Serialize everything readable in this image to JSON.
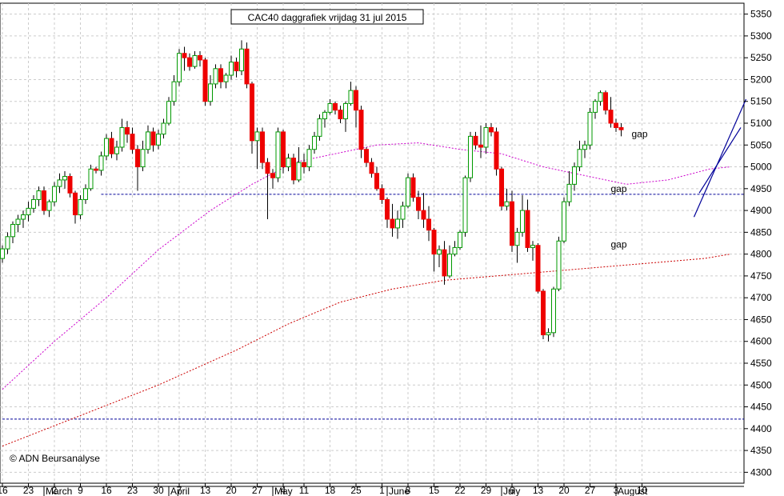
{
  "chart_data": {
    "type": "candlestick",
    "title": "CAC40 daggrafiek vrijdag 31 jul 2015",
    "watermark": "© ADN Beursanalyse",
    "ylim": [
      4275,
      5375
    ],
    "y_ticks": [
      4300,
      4350,
      4400,
      4450,
      4500,
      4550,
      4600,
      4650,
      4700,
      4750,
      4800,
      4850,
      4900,
      4950,
      5000,
      5050,
      5100,
      5150,
      5200,
      5250,
      5300,
      5350
    ],
    "day_labels": [
      {
        "label": "16",
        "i": 0
      },
      {
        "label": "23",
        "i": 5
      },
      {
        "label": "2",
        "i": 10
      },
      {
        "label": "9",
        "i": 15
      },
      {
        "label": "16",
        "i": 20
      },
      {
        "label": "23",
        "i": 25
      },
      {
        "label": "30",
        "i": 30
      },
      {
        "label": "7",
        "i": 34
      },
      {
        "label": "13",
        "i": 39
      },
      {
        "label": "20",
        "i": 44
      },
      {
        "label": "27",
        "i": 49
      },
      {
        "label": "4",
        "i": 54
      },
      {
        "label": "11",
        "i": 58
      },
      {
        "label": "18",
        "i": 63
      },
      {
        "label": "25",
        "i": 68
      },
      {
        "label": "1",
        "i": 73
      },
      {
        "label": "8",
        "i": 78
      },
      {
        "label": "15",
        "i": 83
      },
      {
        "label": "22",
        "i": 88
      },
      {
        "label": "29",
        "i": 93
      },
      {
        "label": "6",
        "i": 98
      },
      {
        "label": "13",
        "i": 103
      },
      {
        "label": "20",
        "i": 108
      },
      {
        "label": "27",
        "i": 113
      },
      {
        "label": "3",
        "i": 118
      },
      {
        "label": "10",
        "i": 123
      }
    ],
    "month_labels": [
      {
        "label": "March",
        "i": 8
      },
      {
        "label": "April",
        "i": 32
      },
      {
        "label": "May",
        "i": 52
      },
      {
        "label": "June",
        "i": 74
      },
      {
        "label": "July",
        "i": 96
      },
      {
        "label": "August",
        "i": 118
      }
    ],
    "candles": [
      [
        4790,
        4820,
        4780,
        4812
      ],
      [
        4812,
        4850,
        4800,
        4840
      ],
      [
        4840,
        4875,
        4825,
        4868
      ],
      [
        4868,
        4890,
        4850,
        4880
      ],
      [
        4880,
        4900,
        4860,
        4890
      ],
      [
        4890,
        4920,
        4875,
        4905
      ],
      [
        4905,
        4935,
        4895,
        4925
      ],
      [
        4925,
        4955,
        4910,
        4945
      ],
      [
        4945,
        4955,
        4890,
        4900
      ],
      [
        4900,
        4925,
        4885,
        4920
      ],
      [
        4920,
        4965,
        4910,
        4955
      ],
      [
        4955,
        4985,
        4940,
        4970
      ],
      [
        4970,
        4990,
        4950,
        4978
      ],
      [
        4978,
        4985,
        4930,
        4940
      ],
      [
        4940,
        4945,
        4870,
        4890
      ],
      [
        4890,
        4935,
        4880,
        4925
      ],
      [
        4925,
        4960,
        4915,
        4950
      ],
      [
        4950,
        5005,
        4945,
        4995
      ],
      [
        4995,
        5000,
        4985,
        4992
      ],
      [
        4992,
        5035,
        4980,
        5025
      ],
      [
        5025,
        5075,
        5015,
        5065
      ],
      [
        5065,
        5080,
        5020,
        5030
      ],
      [
        5030,
        5060,
        5015,
        5045
      ],
      [
        5045,
        5110,
        5035,
        5090
      ],
      [
        5090,
        5105,
        5055,
        5075
      ],
      [
        5075,
        5090,
        5030,
        5040
      ],
      [
        5040,
        5050,
        4945,
        5000
      ],
      [
        5000,
        5060,
        4990,
        5040
      ],
      [
        5040,
        5095,
        5030,
        5080
      ],
      [
        5080,
        5090,
        5035,
        5050
      ],
      [
        5050,
        5085,
        5040,
        5075
      ],
      [
        5075,
        5110,
        5065,
        5100
      ],
      [
        5100,
        5160,
        5095,
        5150
      ],
      [
        5150,
        5210,
        5140,
        5195
      ],
      [
        5195,
        5270,
        5185,
        5260
      ],
      [
        5260,
        5275,
        5220,
        5250
      ],
      [
        5250,
        5260,
        5220,
        5230
      ],
      [
        5230,
        5265,
        5225,
        5255
      ],
      [
        5255,
        5265,
        5230,
        5245
      ],
      [
        5245,
        5250,
        5140,
        5150
      ],
      [
        5150,
        5210,
        5140,
        5190
      ],
      [
        5190,
        5235,
        5180,
        5225
      ],
      [
        5225,
        5235,
        5180,
        5195
      ],
      [
        5195,
        5215,
        5180,
        5210
      ],
      [
        5210,
        5255,
        5200,
        5240
      ],
      [
        5240,
        5250,
        5205,
        5220
      ],
      [
        5220,
        5290,
        5210,
        5270
      ],
      [
        5270,
        5285,
        5180,
        5190
      ],
      [
        5190,
        5195,
        5030,
        5060
      ],
      [
        5060,
        5090,
        4995,
        5080
      ],
      [
        5080,
        5090,
        4995,
        5010
      ],
      [
        5010,
        5020,
        4880,
        4985
      ],
      [
        4985,
        4995,
        4950,
        4975
      ],
      [
        4975,
        5090,
        4965,
        5080
      ],
      [
        5080,
        5085,
        4985,
        5000
      ],
      [
        5000,
        5030,
        4990,
        5020
      ],
      [
        5020,
        5030,
        4960,
        4970
      ],
      [
        4970,
        5045,
        4965,
        5010
      ],
      [
        5010,
        5030,
        4985,
        5000
      ],
      [
        5000,
        5050,
        4990,
        5040
      ],
      [
        5040,
        5080,
        5030,
        5070
      ],
      [
        5070,
        5120,
        5060,
        5110
      ],
      [
        5110,
        5130,
        5090,
        5125
      ],
      [
        5125,
        5155,
        5120,
        5145
      ],
      [
        5145,
        5150,
        5120,
        5130
      ],
      [
        5130,
        5140,
        5100,
        5110
      ],
      [
        5110,
        5150,
        5080,
        5145
      ],
      [
        5145,
        5195,
        5140,
        5175
      ],
      [
        5175,
        5185,
        5090,
        5130
      ],
      [
        5130,
        5140,
        5020,
        5040
      ],
      [
        5040,
        5045,
        5000,
        5010
      ],
      [
        5010,
        5020,
        4975,
        4985
      ],
      [
        4985,
        5000,
        4945,
        4950
      ],
      [
        4950,
        4960,
        4915,
        4925
      ],
      [
        4925,
        4930,
        4860,
        4880
      ],
      [
        4880,
        4915,
        4840,
        4860
      ],
      [
        4860,
        4900,
        4835,
        4880
      ],
      [
        4880,
        4920,
        4860,
        4910
      ],
      [
        4910,
        4985,
        4905,
        4975
      ],
      [
        4975,
        4985,
        4920,
        4930
      ],
      [
        4930,
        4945,
        4880,
        4900
      ],
      [
        4900,
        4940,
        4860,
        4880
      ],
      [
        4880,
        4910,
        4830,
        4855
      ],
      [
        4855,
        4860,
        4760,
        4800
      ],
      [
        4800,
        4820,
        4770,
        4810
      ],
      [
        4810,
        4830,
        4730,
        4750
      ],
      [
        4750,
        4820,
        4745,
        4800
      ],
      [
        4800,
        4830,
        4795,
        4815
      ],
      [
        4815,
        4855,
        4810,
        4850
      ],
      [
        4850,
        4980,
        4840,
        4975
      ],
      [
        4975,
        5080,
        4965,
        5070
      ],
      [
        5070,
        5080,
        5040,
        5050
      ],
      [
        5050,
        5095,
        5020,
        5045
      ],
      [
        5045,
        5100,
        5030,
        5090
      ],
      [
        5090,
        5100,
        5070,
        5080
      ],
      [
        5080,
        5090,
        4980,
        4995
      ],
      [
        4995,
        5000,
        4900,
        4910
      ],
      [
        4910,
        4950,
        4900,
        4920
      ],
      [
        4920,
        4945,
        4805,
        4820
      ],
      [
        4820,
        4860,
        4780,
        4850
      ],
      [
        4850,
        4935,
        4840,
        4900
      ],
      [
        4900,
        4925,
        4805,
        4815
      ],
      [
        4815,
        4830,
        4785,
        4820
      ],
      [
        4820,
        4825,
        4710,
        4715
      ],
      [
        4715,
        4720,
        4605,
        4615
      ],
      [
        4615,
        4630,
        4600,
        4620
      ],
      [
        4620,
        4725,
        4610,
        4720
      ],
      [
        4720,
        4840,
        4715,
        4830
      ],
      [
        4830,
        4930,
        4825,
        4920
      ],
      [
        4920,
        4990,
        4910,
        4960
      ],
      [
        4960,
        5010,
        4945,
        5000
      ],
      [
        5000,
        5060,
        4990,
        5040
      ],
      [
        5040,
        5060,
        5020,
        5050
      ],
      [
        5050,
        5135,
        5040,
        5125
      ],
      [
        5125,
        5155,
        5110,
        5150
      ],
      [
        5150,
        5175,
        5140,
        5170
      ],
      [
        5170,
        5175,
        5120,
        5130
      ],
      [
        5130,
        5160,
        5090,
        5100
      ],
      [
        5100,
        5110,
        5080,
        5090
      ],
      [
        5090,
        5100,
        5070,
        5085
      ]
    ],
    "moving_averages": [
      {
        "color": "#cc00cc",
        "points": [
          [
            0,
            4490
          ],
          [
            10,
            4600
          ],
          [
            20,
            4700
          ],
          [
            30,
            4810
          ],
          [
            40,
            4900
          ],
          [
            48,
            4960
          ],
          [
            56,
            5010
          ],
          [
            64,
            5030
          ],
          [
            72,
            5050
          ],
          [
            80,
            5055
          ],
          [
            88,
            5040
          ],
          [
            96,
            5030
          ],
          [
            104,
            5000
          ],
          [
            112,
            4980
          ],
          [
            120,
            4960
          ],
          [
            128,
            4970
          ],
          [
            136,
            4995
          ],
          [
            140,
            5000
          ]
        ]
      },
      {
        "color": "#cc0000",
        "points": [
          [
            0,
            4360
          ],
          [
            15,
            4430
          ],
          [
            30,
            4500
          ],
          [
            45,
            4580
          ],
          [
            55,
            4640
          ],
          [
            65,
            4690
          ],
          [
            75,
            4720
          ],
          [
            85,
            4740
          ],
          [
            95,
            4750
          ],
          [
            105,
            4760
          ],
          [
            115,
            4770
          ],
          [
            125,
            4780
          ],
          [
            135,
            4790
          ],
          [
            140,
            4800
          ]
        ]
      }
    ],
    "reference_lines": [
      {
        "y": 4937,
        "from_i": 19,
        "color": "#000099"
      },
      {
        "y": 4422,
        "from_i": 0,
        "color": "#000099"
      }
    ],
    "annotations": [
      {
        "text": "gap",
        "i": 121,
        "y": 5068,
        "color": "#999999"
      },
      {
        "text": "gap",
        "i": 117,
        "y": 4942,
        "color": "#999999"
      },
      {
        "text": "gap",
        "i": 117,
        "y": 4815,
        "color": "#000000"
      }
    ],
    "channel_lines": [
      {
        "from": [
          133,
          4885
        ],
        "to": [
          143,
          5155
        ],
        "color": "#000099"
      },
      {
        "from": [
          134,
          4940
        ],
        "to": [
          142,
          5090
        ],
        "color": "#000099"
      }
    ],
    "colors": {
      "up": "#009900",
      "down": "#ee0000",
      "wick": "#000000"
    }
  }
}
